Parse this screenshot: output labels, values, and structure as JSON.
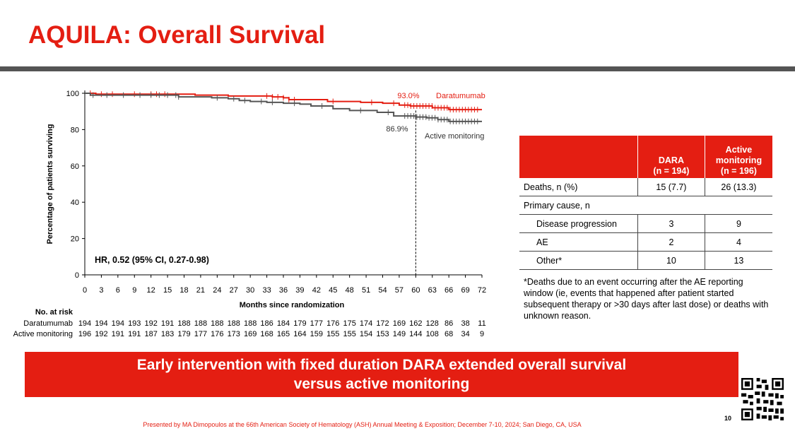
{
  "title": "AQUILA: Overall Survival",
  "chart_data": {
    "type": "line",
    "ylabel": "Percentage of patients surviving",
    "xlabel": "Months since randomization",
    "xlim": [
      0,
      72
    ],
    "ylim": [
      0,
      100
    ],
    "x_ticks": [
      0,
      3,
      6,
      9,
      12,
      15,
      18,
      21,
      24,
      27,
      30,
      33,
      36,
      39,
      42,
      45,
      48,
      51,
      54,
      57,
      60,
      63,
      66,
      69,
      72
    ],
    "y_ticks": [
      0,
      20,
      40,
      60,
      80,
      100
    ],
    "grid": false,
    "reference_line_x": 60,
    "hr_text": "HR, 0.52 (95% CI, 0.27-0.98)",
    "series": [
      {
        "name": "Daratumumab",
        "color": "#e41e12",
        "endpoint_label": "93.0%",
        "x": [
          0,
          2,
          14,
          20,
          26,
          34,
          36,
          37,
          44,
          50,
          54,
          57,
          59,
          60,
          63,
          66,
          72
        ],
        "y": [
          100,
          99.5,
          99.5,
          99,
          98.5,
          98,
          97.5,
          96.5,
          95.5,
          95,
          94.5,
          93.5,
          93,
          93,
          92,
          91,
          91
        ]
      },
      {
        "name": "Active monitoring",
        "color": "#555555",
        "endpoint_label": "86.9%",
        "x": [
          0,
          1,
          14,
          17,
          23,
          26,
          28,
          30,
          33,
          36,
          39,
          41,
          45,
          48,
          53,
          56,
          60,
          62,
          64,
          66,
          72
        ],
        "y": [
          100,
          99,
          99,
          98,
          97.5,
          97,
          96,
          95.5,
          95,
          94.5,
          94,
          93,
          91.5,
          90.5,
          89.5,
          87.5,
          86.9,
          86.5,
          85.5,
          84.5,
          84.5
        ]
      }
    ],
    "at_risk": {
      "header": "No. at risk",
      "rows": [
        {
          "name": "Daratumumab",
          "values": [
            "194",
            "194",
            "194",
            "193",
            "192",
            "191",
            "188",
            "188",
            "188",
            "188",
            "188",
            "186",
            "184",
            "179",
            "177",
            "176",
            "175",
            "174",
            "172",
            "169",
            "162",
            "128",
            "86",
            "38",
            "11"
          ]
        },
        {
          "name": "Active monitoring",
          "values": [
            "196",
            "192",
            "191",
            "191",
            "187",
            "183",
            "179",
            "177",
            "176",
            "173",
            "169",
            "168",
            "165",
            "164",
            "159",
            "155",
            "155",
            "154",
            "153",
            "149",
            "144",
            "108",
            "68",
            "34",
            "9"
          ]
        }
      ]
    }
  },
  "table": {
    "headers": [
      "",
      "DARA\n(n = 194)",
      "Active\nmonitoring\n(n = 196)"
    ],
    "rows": [
      {
        "label": "Deaths, n (%)",
        "dara": "15 (7.7)",
        "am": "26 (13.3)",
        "indent": false
      },
      {
        "label": "Primary cause, n",
        "dara": "",
        "am": "",
        "indent": false,
        "span": true
      },
      {
        "label": "Disease progression",
        "dara": "3",
        "am": "9",
        "indent": true
      },
      {
        "label": "AE",
        "dara": "2",
        "am": "4",
        "indent": true
      },
      {
        "label": "Other*",
        "dara": "10",
        "am": "13",
        "indent": true
      }
    ]
  },
  "footnote": "*Deaths due to an event occurring after the AE reporting window (ie, events that happened after patient started subsequent therapy or >30 days after last dose) or deaths with unknown reason.",
  "banner": {
    "line1": "Early intervention with fixed duration DARA extended overall survival",
    "line2": "versus active monitoring"
  },
  "credit": "Presented by MA Dimopoulos at the 66th American Society of Hematology (ASH) Annual Meeting & Exposition; December 7-10, 2024; San Diego, CA, USA",
  "page_number": "10"
}
